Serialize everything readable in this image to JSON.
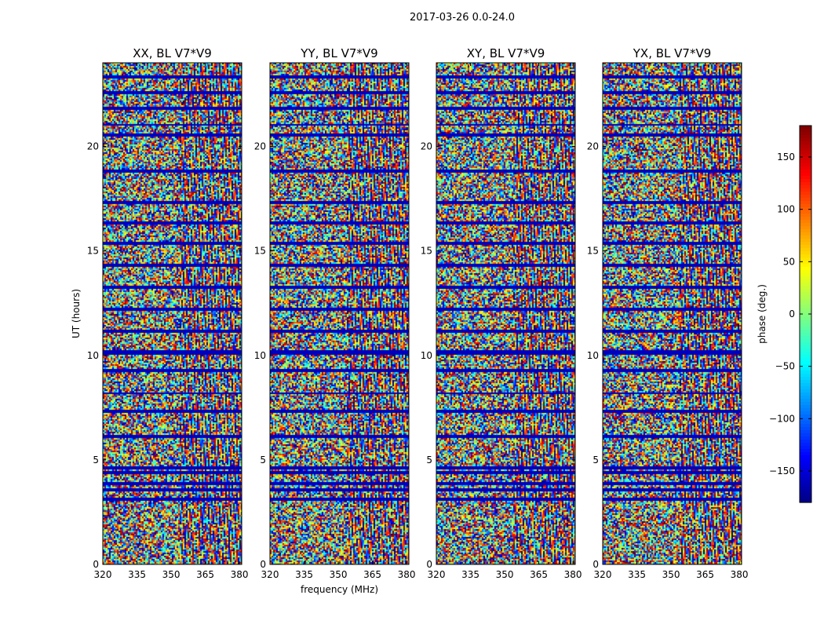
{
  "figure": {
    "suptitle": "2017-03-26 0.0-24.0"
  },
  "chart_data": [
    {
      "type": "heatmap",
      "title": "XX, BL V7*V9",
      "xlabel": "",
      "ylabel": "UT (hours)",
      "xlim": [
        320,
        381
      ],
      "ylim": [
        0,
        24
      ],
      "xticks": [
        320,
        335,
        350,
        365,
        380
      ],
      "yticks": [
        0,
        5,
        10,
        15,
        20
      ],
      "value": "visibility phase (deg.)"
    },
    {
      "type": "heatmap",
      "title": "YY, BL V7*V9",
      "xlabel": "frequency (MHz)",
      "ylabel": "",
      "xlim": [
        320,
        381
      ],
      "ylim": [
        0,
        24
      ],
      "xticks": [
        320,
        335,
        350,
        365,
        380
      ],
      "yticks": [
        0,
        5,
        10,
        15,
        20
      ],
      "value": "visibility phase (deg.)"
    },
    {
      "type": "heatmap",
      "title": "XY, BL V7*V9",
      "xlabel": "",
      "ylabel": "",
      "xlim": [
        320,
        381
      ],
      "ylim": [
        0,
        24
      ],
      "xticks": [
        320,
        335,
        350,
        365,
        380
      ],
      "yticks": [
        0,
        5,
        10,
        15,
        20
      ],
      "value": "visibility phase (deg.)"
    },
    {
      "type": "heatmap",
      "title": "YX, BL V7*V9",
      "xlabel": "",
      "ylabel": "",
      "xlim": [
        320,
        381
      ],
      "ylim": [
        0,
        24
      ],
      "xticks": [
        320,
        335,
        350,
        365,
        380
      ],
      "yticks": [
        0,
        5,
        10,
        15,
        20
      ],
      "value": "visibility phase (deg.)"
    }
  ],
  "colorbar": {
    "label": "phase (deg.)",
    "range": [
      -180,
      180
    ],
    "ticks": [
      150,
      100,
      50,
      0,
      -50,
      -100,
      -150
    ],
    "tick_labels": [
      "150",
      "100",
      "50",
      "0",
      "−50",
      "−100",
      "−150"
    ],
    "colormap": "jet"
  },
  "flagged_bands_hours": [
    [
      3.05,
      3.25
    ],
    [
      3.5,
      3.65
    ],
    [
      3.85,
      4.0
    ],
    [
      4.35,
      4.5
    ],
    [
      4.6,
      4.75
    ],
    [
      6.05,
      6.2
    ],
    [
      7.25,
      7.4
    ],
    [
      8.2,
      8.3
    ],
    [
      9.25,
      9.4
    ],
    [
      10.1,
      10.3
    ],
    [
      11.1,
      11.25
    ],
    [
      12.15,
      12.3
    ],
    [
      13.2,
      13.35
    ],
    [
      14.3,
      14.4
    ],
    [
      15.35,
      15.5
    ],
    [
      16.3,
      16.45
    ],
    [
      17.3,
      17.45
    ],
    [
      18.8,
      18.95
    ],
    [
      20.5,
      20.65
    ],
    [
      21.0,
      21.1
    ],
    [
      21.8,
      21.95
    ],
    [
      22.55,
      22.7
    ],
    [
      23.3,
      23.45
    ]
  ]
}
